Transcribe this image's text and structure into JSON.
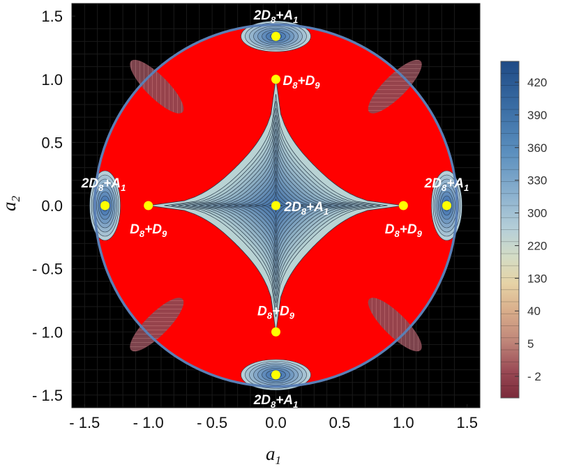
{
  "chart_data": {
    "type": "heatmap",
    "xlabel": "a",
    "xlabel_sub": "1",
    "ylabel": "a",
    "ylabel_sub": "2",
    "xlim": [
      -1.6,
      1.6
    ],
    "ylim": [
      -1.6,
      1.6
    ],
    "xticks": [
      -1.5,
      -1.0,
      -0.5,
      0.0,
      0.5,
      1.0,
      1.5
    ],
    "yticks": [
      -1.5,
      -1.0,
      -0.5,
      0.0,
      0.5,
      1.0,
      1.5
    ],
    "xtick_labels": [
      "- 1.5",
      "- 1.0",
      "- 0.5",
      "0.0",
      "0.5",
      "1.0",
      "1.5"
    ],
    "ytick_labels": [
      "- 1.5",
      "- 1.0",
      "- 0.5",
      "0.0",
      "0.5",
      "1.0",
      "1.5"
    ],
    "boundary_circle_radius": 1.42,
    "colorbar": {
      "tick_labels": [
        "420",
        "390",
        "360",
        "330",
        "300",
        "220",
        "130",
        "40",
        "5",
        "- 2"
      ],
      "colors_top_to_bottom": [
        "#1f4a85",
        "#3b6ea5",
        "#5b8fbe",
        "#8db2cf",
        "#b6cfd8",
        "#d3dcc5",
        "#e6d3a6",
        "#d9ae8b",
        "#c0877a",
        "#9a4a55",
        "#7a2a3a"
      ]
    },
    "colors": {
      "background": "#000000",
      "excluded_region": "#ff0000",
      "boundary": "#5a7fb5",
      "points": "#ffff00",
      "contour_low": "#b9d3d4",
      "contour_high": "#3a6aa5"
    },
    "points": [
      {
        "x": 0.0,
        "y": 1.34,
        "label": "2D",
        "label_sub": "8",
        "label_rest": "+A",
        "label_sub2": "1"
      },
      {
        "x": 0.0,
        "y": 1.0,
        "label": "D",
        "label_sub": "8",
        "label_rest": "+D",
        "label_sub2": "9"
      },
      {
        "x": 0.0,
        "y": 0.0,
        "label": "2D",
        "label_sub": "8",
        "label_rest": "+A",
        "label_sub2": "1"
      },
      {
        "x": -1.34,
        "y": 0.0,
        "label": "2D",
        "label_sub": "8",
        "label_rest": "+A",
        "label_sub2": "1"
      },
      {
        "x": -1.0,
        "y": 0.0,
        "label": "D",
        "label_sub": "8",
        "label_rest": "+D",
        "label_sub2": "9"
      },
      {
        "x": 1.0,
        "y": 0.0,
        "label": "D",
        "label_sub": "8",
        "label_rest": "+D",
        "label_sub2": "9"
      },
      {
        "x": 1.34,
        "y": 0.0,
        "label": "2D",
        "label_sub": "8",
        "label_rest": "+A",
        "label_sub2": "1"
      },
      {
        "x": 0.0,
        "y": -1.0,
        "label": "D",
        "label_sub": "8",
        "label_rest": "+D",
        "label_sub2": "9"
      },
      {
        "x": 0.0,
        "y": -1.34,
        "label": "2D",
        "label_sub": "8",
        "label_rest": "+A",
        "label_sub2": "1"
      }
    ]
  }
}
